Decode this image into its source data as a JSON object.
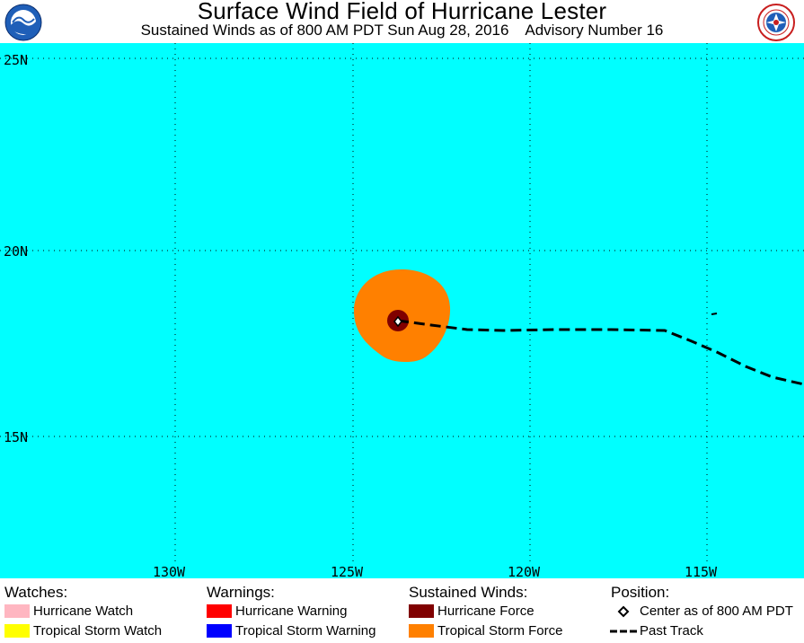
{
  "header": {
    "title": "Surface Wind Field of Hurricane Lester",
    "subtitle": "Sustained Winds as of 800 AM PDT Sun Aug 28, 2016    Advisory Number 16",
    "left_logo_icon": "noaa-logo-icon",
    "right_logo_icon": "nws-logo-icon"
  },
  "map": {
    "ocean_color": "#00ffff",
    "lat_labels": [
      "25N",
      "20N",
      "15N"
    ],
    "lon_labels": [
      "130W",
      "125W",
      "120W",
      "115W"
    ],
    "gridlines": "dotted",
    "storm": {
      "center_label": "Center as of 800 AM PDT",
      "tropical_storm_force_color": "#ff8000",
      "hurricane_force_color": "#800000"
    }
  },
  "legend": {
    "watches": {
      "heading": "Watches:",
      "items": [
        {
          "label": "Hurricane Watch",
          "color": "#ffb6c1"
        },
        {
          "label": "Tropical Storm Watch",
          "color": "#ffff00"
        }
      ]
    },
    "warnings": {
      "heading": "Warnings:",
      "items": [
        {
          "label": "Hurricane Warning",
          "color": "#ff0000"
        },
        {
          "label": "Tropical Storm Warning",
          "color": "#0000ff"
        }
      ]
    },
    "winds": {
      "heading": "Sustained Winds:",
      "items": [
        {
          "label": "Hurricane Force",
          "color": "#800000"
        },
        {
          "label": "Tropical Storm Force",
          "color": "#ff8000"
        }
      ]
    },
    "position": {
      "heading": "Position:",
      "items": [
        {
          "label": "Center as of 800 AM PDT",
          "icon": "diamond-marker-icon"
        },
        {
          "label": "Past Track",
          "icon": "dashed-line-icon"
        }
      ]
    }
  }
}
